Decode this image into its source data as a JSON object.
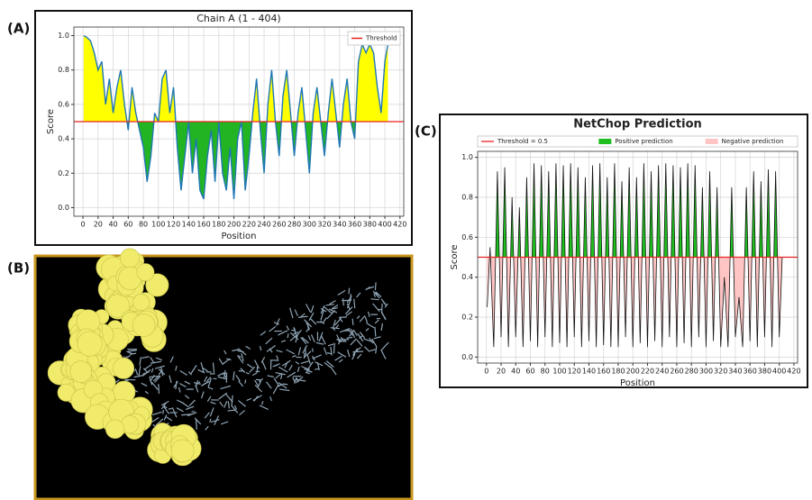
{
  "panel_labels": [
    "(A)",
    "(B)",
    "(C)"
  ],
  "chart_data": [
    {
      "type": "line",
      "title": "Chain A (1 - 404)",
      "x_label": "Position",
      "y_label": "Score",
      "x": [
        1,
        5,
        10,
        15,
        20,
        25,
        30,
        35,
        40,
        45,
        50,
        55,
        60,
        65,
        70,
        75,
        80,
        85,
        90,
        95,
        100,
        105,
        110,
        115,
        120,
        125,
        130,
        135,
        140,
        145,
        150,
        155,
        160,
        165,
        170,
        175,
        180,
        185,
        190,
        195,
        200,
        205,
        210,
        215,
        220,
        225,
        230,
        235,
        240,
        245,
        250,
        255,
        260,
        265,
        270,
        275,
        280,
        285,
        290,
        295,
        300,
        305,
        310,
        315,
        320,
        325,
        330,
        335,
        340,
        345,
        350,
        355,
        360,
        365,
        370,
        375,
        380,
        385,
        390,
        395,
        400,
        404
      ],
      "values": [
        1.0,
        0.99,
        0.97,
        0.9,
        0.8,
        0.85,
        0.6,
        0.75,
        0.55,
        0.7,
        0.8,
        0.6,
        0.45,
        0.7,
        0.55,
        0.45,
        0.35,
        0.15,
        0.3,
        0.55,
        0.5,
        0.75,
        0.8,
        0.55,
        0.7,
        0.35,
        0.1,
        0.3,
        0.5,
        0.2,
        0.4,
        0.1,
        0.05,
        0.3,
        0.45,
        0.15,
        0.5,
        0.2,
        0.1,
        0.35,
        0.05,
        0.4,
        0.5,
        0.1,
        0.3,
        0.55,
        0.75,
        0.45,
        0.2,
        0.6,
        0.8,
        0.5,
        0.3,
        0.65,
        0.8,
        0.55,
        0.3,
        0.55,
        0.7,
        0.45,
        0.2,
        0.55,
        0.7,
        0.5,
        0.3,
        0.55,
        0.75,
        0.55,
        0.35,
        0.6,
        0.75,
        0.5,
        0.4,
        0.85,
        0.95,
        0.9,
        0.95,
        0.9,
        0.7,
        0.55,
        0.85,
        0.95
      ],
      "line_color": "#1f77b4",
      "threshold": {
        "value": 0.5,
        "label": "Threshold",
        "color": "#e8231f"
      },
      "fill_above": {
        "color": "#ffff00"
      },
      "fill_below": {
        "color": "#22b422"
      },
      "legend": "upper right",
      "grid": true,
      "xlim": [
        -12,
        425
      ],
      "ylim": [
        -0.05,
        1.05
      ],
      "xticks": [
        0,
        20,
        40,
        60,
        80,
        100,
        120,
        140,
        160,
        180,
        200,
        220,
        240,
        260,
        280,
        300,
        320,
        340,
        360,
        380,
        400,
        420
      ],
      "yticks": [
        {
          "value": 0,
          "label": "0.0"
        },
        0.2,
        0.4,
        0.6,
        0.8,
        {
          "value": 1,
          "label": "1.0"
        }
      ]
    },
    {
      "type": "line",
      "title": "NetChop Prediction",
      "x_label": "Position",
      "y_label": "Score",
      "x": [
        1,
        5,
        10,
        15,
        20,
        25,
        30,
        35,
        40,
        45,
        50,
        55,
        60,
        65,
        70,
        75,
        80,
        85,
        90,
        95,
        100,
        105,
        110,
        115,
        120,
        125,
        130,
        135,
        140,
        145,
        150,
        155,
        160,
        165,
        170,
        175,
        180,
        185,
        190,
        195,
        200,
        205,
        210,
        215,
        220,
        225,
        230,
        235,
        240,
        245,
        250,
        255,
        260,
        265,
        270,
        275,
        280,
        285,
        290,
        295,
        300,
        305,
        310,
        315,
        320,
        325,
        330,
        335,
        340,
        345,
        350,
        355,
        360,
        365,
        370,
        375,
        380,
        385,
        390,
        395,
        400,
        404
      ],
      "values": [
        0.25,
        0.55,
        0.05,
        0.93,
        0.1,
        0.95,
        0.05,
        0.8,
        0.1,
        0.75,
        0.05,
        0.9,
        0.08,
        0.97,
        0.05,
        0.96,
        0.1,
        0.93,
        0.05,
        0.97,
        0.07,
        0.96,
        0.05,
        0.97,
        0.1,
        0.95,
        0.05,
        0.9,
        0.08,
        0.96,
        0.05,
        0.97,
        0.06,
        0.9,
        0.05,
        0.97,
        0.05,
        0.88,
        0.1,
        0.95,
        0.05,
        0.9,
        0.07,
        0.97,
        0.05,
        0.93,
        0.08,
        0.96,
        0.05,
        0.97,
        0.1,
        0.96,
        0.05,
        0.95,
        0.07,
        0.97,
        0.05,
        0.96,
        0.1,
        0.85,
        0.05,
        0.93,
        0.08,
        0.85,
        0.05,
        0.4,
        0.05,
        0.85,
        0.1,
        0.3,
        0.05,
        0.85,
        0.08,
        0.93,
        0.05,
        0.88,
        0.1,
        0.94,
        0.05,
        0.93,
        0.1,
        0.5
      ],
      "line_color": "#111111",
      "threshold": {
        "value": 0.5,
        "label": "Threshold = 0.5",
        "color": "#e8231f"
      },
      "fill_above": {
        "label": "Positive prediction",
        "color": "#1fbf1f"
      },
      "fill_below": {
        "label": "Negative prediction",
        "color": "#ffc4c4"
      },
      "legend": "top",
      "grid": true,
      "xlim": [
        -12,
        425
      ],
      "ylim": [
        -0.03,
        1.03
      ],
      "xticks": [
        0,
        20,
        40,
        60,
        80,
        100,
        120,
        140,
        160,
        180,
        200,
        220,
        240,
        260,
        280,
        300,
        320,
        340,
        360,
        380,
        400,
        420
      ],
      "yticks": [
        {
          "value": 0,
          "label": "0.0"
        },
        0.2,
        0.4,
        0.6,
        0.8,
        {
          "value": 1,
          "label": "1.0"
        }
      ]
    }
  ]
}
